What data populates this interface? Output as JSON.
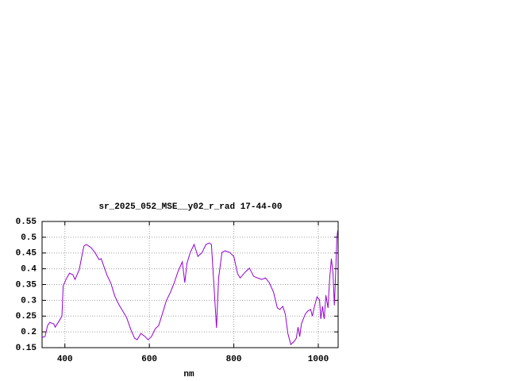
{
  "chart_data": {
    "type": "line",
    "title": "sr_2025_052_MSE__y02_r_rad 17-44-00",
    "xlabel": "nm",
    "x": [
      346,
      353,
      359,
      364,
      374,
      377,
      387,
      393,
      396,
      404,
      411,
      419,
      424,
      434,
      439,
      445,
      451,
      462,
      471,
      481,
      486,
      492,
      500,
      509,
      518,
      528,
      537,
      546,
      556,
      565,
      571,
      580,
      590,
      597,
      605,
      614,
      622,
      631,
      640,
      650,
      659,
      668,
      678,
      684,
      689,
      697,
      706,
      715,
      725,
      734,
      742,
      747,
      753,
      759,
      764,
      772,
      779,
      790,
      800,
      809,
      815,
      828,
      837,
      847,
      856,
      866,
      875,
      884,
      894,
      903,
      909,
      916,
      922,
      928,
      935,
      943,
      948,
      952,
      956,
      960,
      969,
      975,
      982,
      986,
      991,
      997,
      1003,
      1006,
      1010,
      1014,
      1018,
      1023,
      1027,
      1031,
      1035,
      1038,
      1040,
      1044,
      1046
    ],
    "values": [
      0.183,
      0.185,
      0.22,
      0.23,
      0.225,
      0.215,
      0.236,
      0.25,
      0.346,
      0.37,
      0.386,
      0.381,
      0.366,
      0.397,
      0.432,
      0.472,
      0.477,
      0.467,
      0.452,
      0.429,
      0.432,
      0.409,
      0.379,
      0.354,
      0.314,
      0.286,
      0.266,
      0.246,
      0.208,
      0.18,
      0.175,
      0.195,
      0.185,
      0.175,
      0.185,
      0.21,
      0.22,
      0.258,
      0.298,
      0.326,
      0.356,
      0.392,
      0.422,
      0.356,
      0.417,
      0.452,
      0.477,
      0.439,
      0.452,
      0.477,
      0.482,
      0.477,
      0.346,
      0.213,
      0.371,
      0.452,
      0.457,
      0.452,
      0.439,
      0.384,
      0.371,
      0.391,
      0.402,
      0.376,
      0.371,
      0.366,
      0.371,
      0.356,
      0.326,
      0.276,
      0.271,
      0.281,
      0.256,
      0.195,
      0.16,
      0.17,
      0.18,
      0.215,
      0.185,
      0.225,
      0.256,
      0.266,
      0.271,
      0.25,
      0.281,
      0.311,
      0.301,
      0.241,
      0.281,
      0.241,
      0.316,
      0.276,
      0.371,
      0.432,
      0.384,
      0.284,
      0.346,
      0.497,
      0.522
    ],
    "color": "#9400d3",
    "xlim": [
      346,
      1047
    ],
    "ylim": [
      0.15,
      0.55
    ],
    "xticks": [
      400,
      600,
      800,
      1000
    ],
    "yticks": [
      0.15,
      0.2,
      0.25,
      0.3,
      0.35,
      0.4,
      0.45,
      0.5,
      0.55
    ],
    "grid": true
  }
}
